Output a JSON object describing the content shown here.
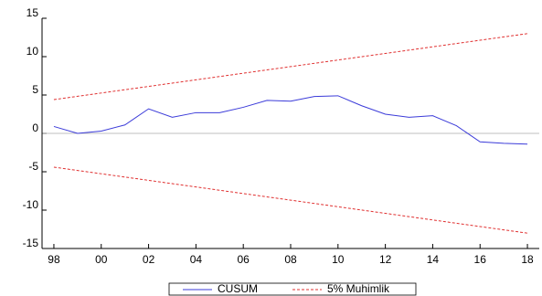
{
  "chart_data": {
    "type": "line",
    "x": [
      1998,
      1999,
      2000,
      2001,
      2002,
      2003,
      2004,
      2005,
      2006,
      2007,
      2008,
      2009,
      2010,
      2011,
      2012,
      2013,
      2014,
      2015,
      2016,
      2017,
      2018
    ],
    "series": [
      {
        "name": "CUSUM",
        "color": "#3b3bd9",
        "dash": "none",
        "values": [
          0.9,
          0.0,
          0.3,
          1.1,
          3.2,
          2.1,
          2.7,
          2.7,
          3.4,
          4.3,
          4.2,
          4.8,
          4.9,
          3.6,
          2.5,
          2.1,
          2.3,
          1.0,
          -1.1,
          -1.3,
          -1.4
        ]
      },
      {
        "name": "5% Muhimlik",
        "color": "#e03030",
        "dash": "3,2",
        "values": [
          4.4,
          4.83,
          5.26,
          5.69,
          6.12,
          6.55,
          6.98,
          7.41,
          7.84,
          8.27,
          8.7,
          9.13,
          9.56,
          9.99,
          10.42,
          10.85,
          11.28,
          11.71,
          12.14,
          12.57,
          13.0
        ],
        "lower": [
          -4.4,
          -4.83,
          -5.26,
          -5.69,
          -6.12,
          -6.55,
          -6.98,
          -7.41,
          -7.84,
          -8.27,
          -8.7,
          -9.13,
          -9.56,
          -9.99,
          -10.42,
          -10.85,
          -11.28,
          -11.71,
          -12.14,
          -12.57,
          -13.0
        ]
      }
    ],
    "xlim": [
      1997.5,
      2018.5
    ],
    "xticks": [
      {
        "value": 1998,
        "label": "98"
      },
      {
        "value": 2000,
        "label": "00"
      },
      {
        "value": 2002,
        "label": "02"
      },
      {
        "value": 2004,
        "label": "04"
      },
      {
        "value": 2006,
        "label": "06"
      },
      {
        "value": 2008,
        "label": "08"
      },
      {
        "value": 2010,
        "label": "10"
      },
      {
        "value": 2012,
        "label": "12"
      },
      {
        "value": 2014,
        "label": "14"
      },
      {
        "value": 2016,
        "label": "16"
      },
      {
        "value": 2018,
        "label": "18"
      }
    ],
    "ylim": [
      -15,
      15
    ],
    "yticks": [
      -15,
      -10,
      -5,
      0,
      5,
      10,
      15
    ],
    "zero_line": true
  }
}
